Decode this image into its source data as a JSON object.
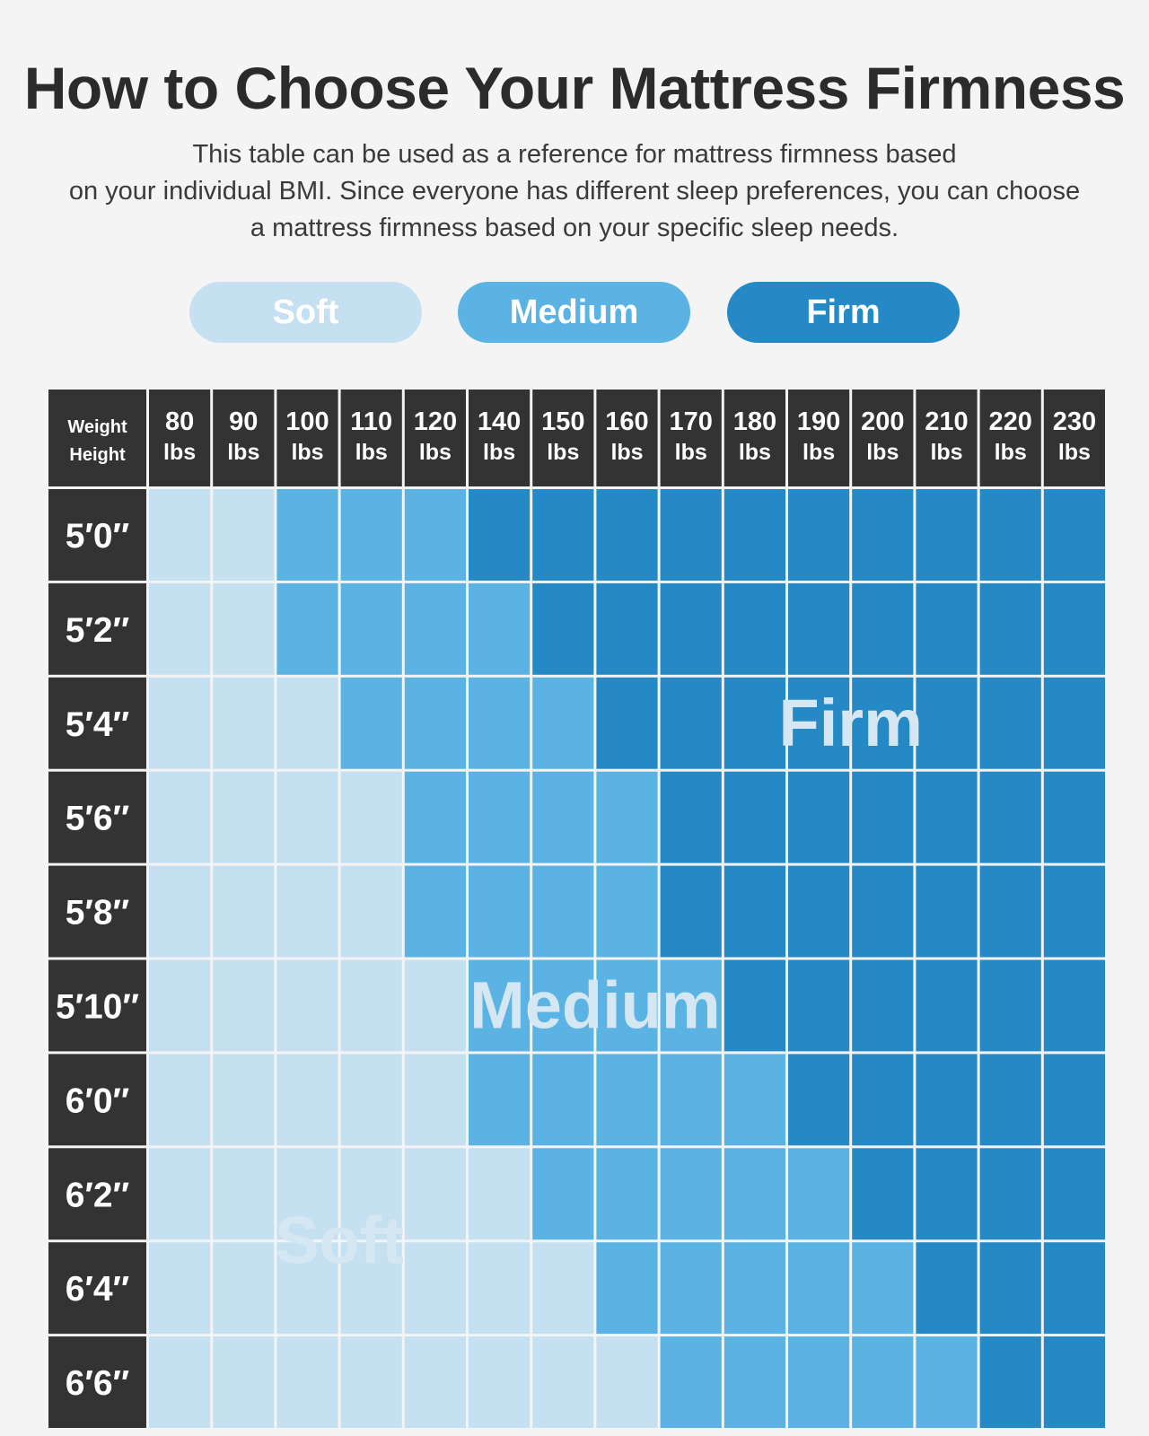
{
  "title": "How to Choose Your Mattress Firmness",
  "subtitle_lines": [
    "This table can be used as a reference for mattress firmness based",
    "on your individual BMI. Since everyone has different sleep preferences, you can choose",
    "a mattress firmness based on your specific sleep needs."
  ],
  "legend": [
    {
      "label": "Soft",
      "color": "#c5e1f1"
    },
    {
      "label": "Medium",
      "color": "#5ab3e2"
    },
    {
      "label": "Firm",
      "color": "#2489c4"
    }
  ],
  "colors": {
    "header_bg": "#333333",
    "header_text": "#ffffff",
    "grid_line": "#f4f4f4",
    "overlay_text": "#d4e7f3"
  },
  "chart_data": {
    "type": "heatmap",
    "corner_labels": [
      "Weight",
      "Height"
    ],
    "x_weights": [
      "80",
      "90",
      "100",
      "110",
      "120",
      "140",
      "150",
      "160",
      "170",
      "180",
      "190",
      "200",
      "210",
      "220",
      "230"
    ],
    "x_unit": "lbs",
    "y_heights": [
      "5′0″",
      "5′2″",
      "5′4″",
      "5′6″",
      "5′8″",
      "5′10″",
      "6′0″",
      "6′2″",
      "6′4″",
      "6′6″"
    ],
    "levels": [
      "Soft",
      "Medium",
      "Firm"
    ],
    "grid": [
      [
        "Soft",
        "Soft",
        "Medium",
        "Medium",
        "Medium",
        "Firm",
        "Firm",
        "Firm",
        "Firm",
        "Firm",
        "Firm",
        "Firm",
        "Firm",
        "Firm",
        "Firm"
      ],
      [
        "Soft",
        "Soft",
        "Medium",
        "Medium",
        "Medium",
        "Medium",
        "Firm",
        "Firm",
        "Firm",
        "Firm",
        "Firm",
        "Firm",
        "Firm",
        "Firm",
        "Firm"
      ],
      [
        "Soft",
        "Soft",
        "Soft",
        "Medium",
        "Medium",
        "Medium",
        "Medium",
        "Firm",
        "Firm",
        "Firm",
        "Firm",
        "Firm",
        "Firm",
        "Firm",
        "Firm"
      ],
      [
        "Soft",
        "Soft",
        "Soft",
        "Soft",
        "Medium",
        "Medium",
        "Medium",
        "Medium",
        "Firm",
        "Firm",
        "Firm",
        "Firm",
        "Firm",
        "Firm",
        "Firm"
      ],
      [
        "Soft",
        "Soft",
        "Soft",
        "Soft",
        "Medium",
        "Medium",
        "Medium",
        "Medium",
        "Firm",
        "Firm",
        "Firm",
        "Firm",
        "Firm",
        "Firm",
        "Firm"
      ],
      [
        "Soft",
        "Soft",
        "Soft",
        "Soft",
        "Soft",
        "Medium",
        "Medium",
        "Medium",
        "Medium",
        "Firm",
        "Firm",
        "Firm",
        "Firm",
        "Firm",
        "Firm"
      ],
      [
        "Soft",
        "Soft",
        "Soft",
        "Soft",
        "Soft",
        "Medium",
        "Medium",
        "Medium",
        "Medium",
        "Medium",
        "Firm",
        "Firm",
        "Firm",
        "Firm",
        "Firm"
      ],
      [
        "Soft",
        "Soft",
        "Soft",
        "Soft",
        "Soft",
        "Soft",
        "Medium",
        "Medium",
        "Medium",
        "Medium",
        "Medium",
        "Firm",
        "Firm",
        "Firm",
        "Firm"
      ],
      [
        "Soft",
        "Soft",
        "Soft",
        "Soft",
        "Soft",
        "Soft",
        "Soft",
        "Medium",
        "Medium",
        "Medium",
        "Medium",
        "Medium",
        "Firm",
        "Firm",
        "Firm"
      ],
      [
        "Soft",
        "Soft",
        "Soft",
        "Soft",
        "Soft",
        "Soft",
        "Soft",
        "Soft",
        "Medium",
        "Medium",
        "Medium",
        "Medium",
        "Medium",
        "Firm",
        "Firm"
      ]
    ],
    "region_labels": [
      "Firm",
      "Medium",
      "Soft"
    ]
  }
}
